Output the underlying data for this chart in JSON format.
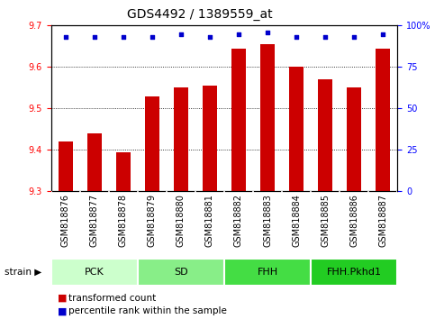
{
  "title": "GDS4492 / 1389559_at",
  "samples": [
    "GSM818876",
    "GSM818877",
    "GSM818878",
    "GSM818879",
    "GSM818880",
    "GSM818881",
    "GSM818882",
    "GSM818883",
    "GSM818884",
    "GSM818885",
    "GSM818886",
    "GSM818887"
  ],
  "bar_values": [
    9.42,
    9.44,
    9.395,
    9.53,
    9.55,
    9.555,
    9.645,
    9.655,
    9.6,
    9.57,
    9.55,
    9.645
  ],
  "percentile_values": [
    93,
    93,
    93,
    93,
    95,
    93,
    95,
    96,
    93,
    93,
    93,
    95
  ],
  "ylim_left": [
    9.3,
    9.7
  ],
  "ylim_right": [
    0,
    100
  ],
  "yticks_left": [
    9.3,
    9.4,
    9.5,
    9.6,
    9.7
  ],
  "yticks_right": [
    0,
    25,
    50,
    75,
    100
  ],
  "bar_color": "#cc0000",
  "dot_color": "#0000cc",
  "groups": [
    {
      "label": "PCK",
      "start": 0,
      "end": 3,
      "color": "#ccffcc"
    },
    {
      "label": "SD",
      "start": 3,
      "end": 6,
      "color": "#88ee88"
    },
    {
      "label": "FHH",
      "start": 6,
      "end": 9,
      "color": "#44dd44"
    },
    {
      "label": "FHH.Pkhd1",
      "start": 9,
      "end": 12,
      "color": "#22cc22"
    }
  ],
  "strain_label": "strain",
  "legend_bar_label": "transformed count",
  "legend_dot_label": "percentile rank within the sample",
  "background_color": "#ffffff",
  "tick_label_area_color": "#c8c8c8",
  "title_fontsize": 10,
  "tick_fontsize": 7,
  "label_fontsize": 7,
  "group_label_fontsize": 8
}
